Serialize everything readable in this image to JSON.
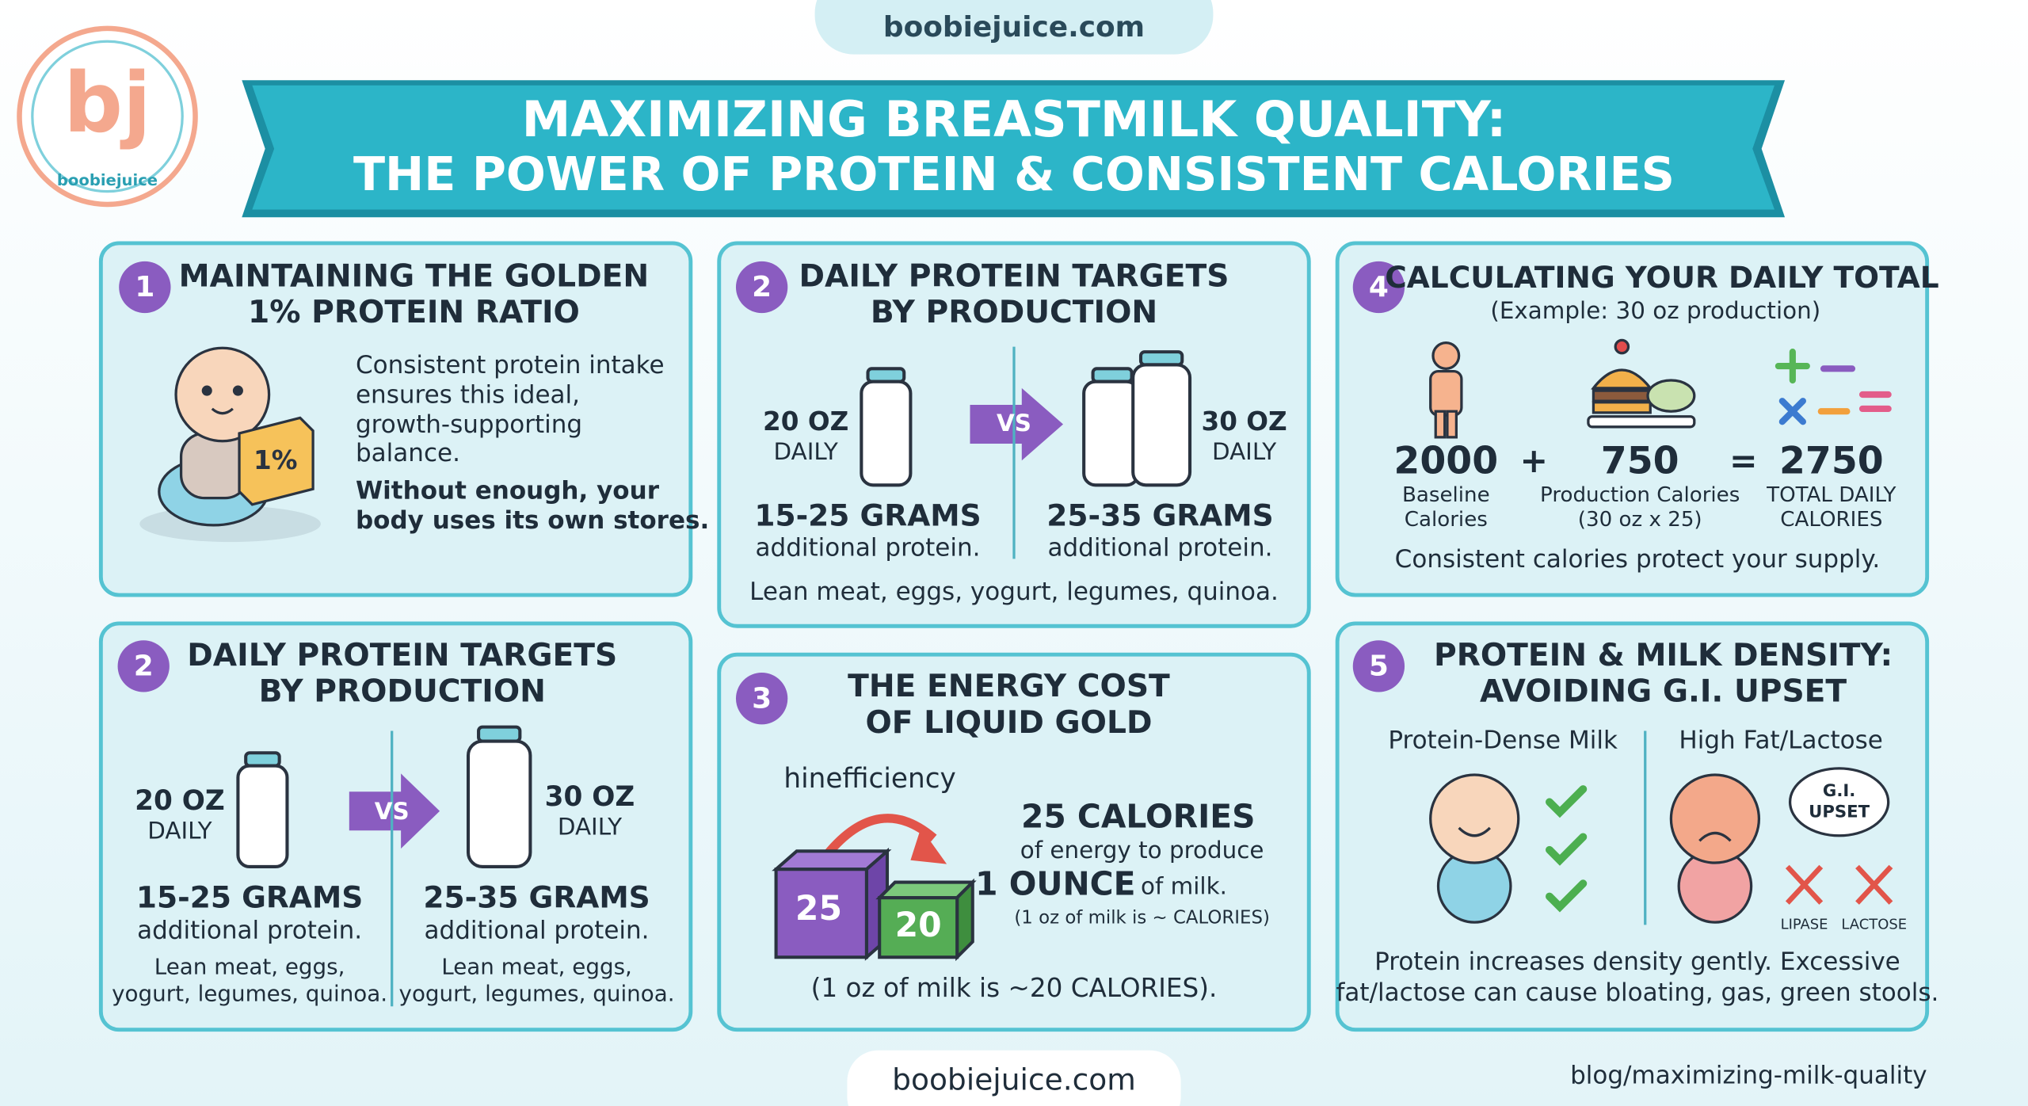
{
  "site_top": "boobiejuice.com",
  "logo": {
    "letters": "bj",
    "name": "boobiejuice"
  },
  "title": {
    "line1": "MAXIMIZING BREASTMILK QUALITY:",
    "line2": "THE POWER OF PROTEIN & CONSISTENT CALORIES"
  },
  "panels": [
    {
      "number": "1",
      "title": [
        "MAINTAINING THE GOLDEN",
        "1% PROTEIN RATIO"
      ],
      "badge": "1%",
      "body": [
        "Consistent protein intake",
        "ensures this ideal,",
        "growth-supporting",
        "balance."
      ],
      "emphasis": [
        "Without enough, your",
        "body uses its own stores."
      ]
    },
    {
      "number": "2",
      "title": [
        "DAILY PROTEIN TARGETS",
        "BY PRODUCTION"
      ],
      "left": {
        "amount": [
          "20 OZ",
          "DAILY"
        ],
        "grams": "15-25 GRAMS",
        "note": "additional protein."
      },
      "vs": "VS",
      "right": {
        "amount": [
          "30 OZ",
          "DAILY"
        ],
        "grams": "25-35 GRAMS",
        "note": "additional protein."
      },
      "foods": "Lean meat, eggs, yogurt, legumes, quinoa."
    },
    {
      "number": "4",
      "title": "CALCULATING YOUR DAILY TOTAL",
      "subtitle": "(Example: 30 oz production)",
      "terms": [
        {
          "value": "2000",
          "label": [
            "Baseline",
            "Calories"
          ]
        },
        {
          "value": "750",
          "label": [
            "Production Calories",
            "(30 oz x 25)"
          ]
        },
        {
          "value": "2750",
          "label": [
            "TOTAL DAILY",
            "CALORIES"
          ]
        }
      ],
      "operators": [
        "+",
        "="
      ],
      "footer": "Consistent calories protect your supply."
    },
    {
      "number": "2",
      "title": [
        "DAILY PROTEIN TARGETS",
        "BY PRODUCTION"
      ],
      "left": {
        "amount": [
          "20 OZ",
          "DAILY"
        ],
        "grams": "15-25 GRAMS",
        "note": "additional protein.",
        "foods": [
          "Lean meat, eggs,",
          "yogurt, legumes, quinoa."
        ]
      },
      "vs": "VS",
      "right": {
        "amount": [
          "30 OZ",
          "DAILY"
        ],
        "grams": "25-35 GRAMS",
        "note": "additional protein.",
        "foods": [
          "Lean meat, eggs,",
          "yogurt, legumes, quinoa."
        ]
      }
    },
    {
      "number": "3",
      "title": [
        "THE ENERGY COST",
        "OF LIQUID GOLD"
      ],
      "label": "hinefficiency",
      "cubes": [
        "25",
        "20"
      ],
      "headline": "25 CALORIES",
      "line": "of energy to produce",
      "ounce": "1 OUNCE",
      "of_milk": "of milk.",
      "note": "(1 oz of milk is ~ CALORIES)",
      "footer": "(1 oz of milk is ~20 CALORIES)."
    },
    {
      "number": "5",
      "title": [
        "PROTEIN & MILK DENSITY:",
        "AVOIDING G.I. UPSET"
      ],
      "left_label": "Protein-Dense Milk",
      "right_label": "High Fat/Lactose",
      "cloud": [
        "G.I.",
        "UPSET"
      ],
      "blocked": [
        "LIPASE",
        "LACTOSE"
      ],
      "footer": [
        "Protein increases density gently. Excessive",
        "fat/lactose can cause bloating, gas, green stools."
      ]
    }
  ],
  "footer": {
    "site": "boobiejuice.com",
    "url": "blog/maximizing-milk-quality"
  }
}
